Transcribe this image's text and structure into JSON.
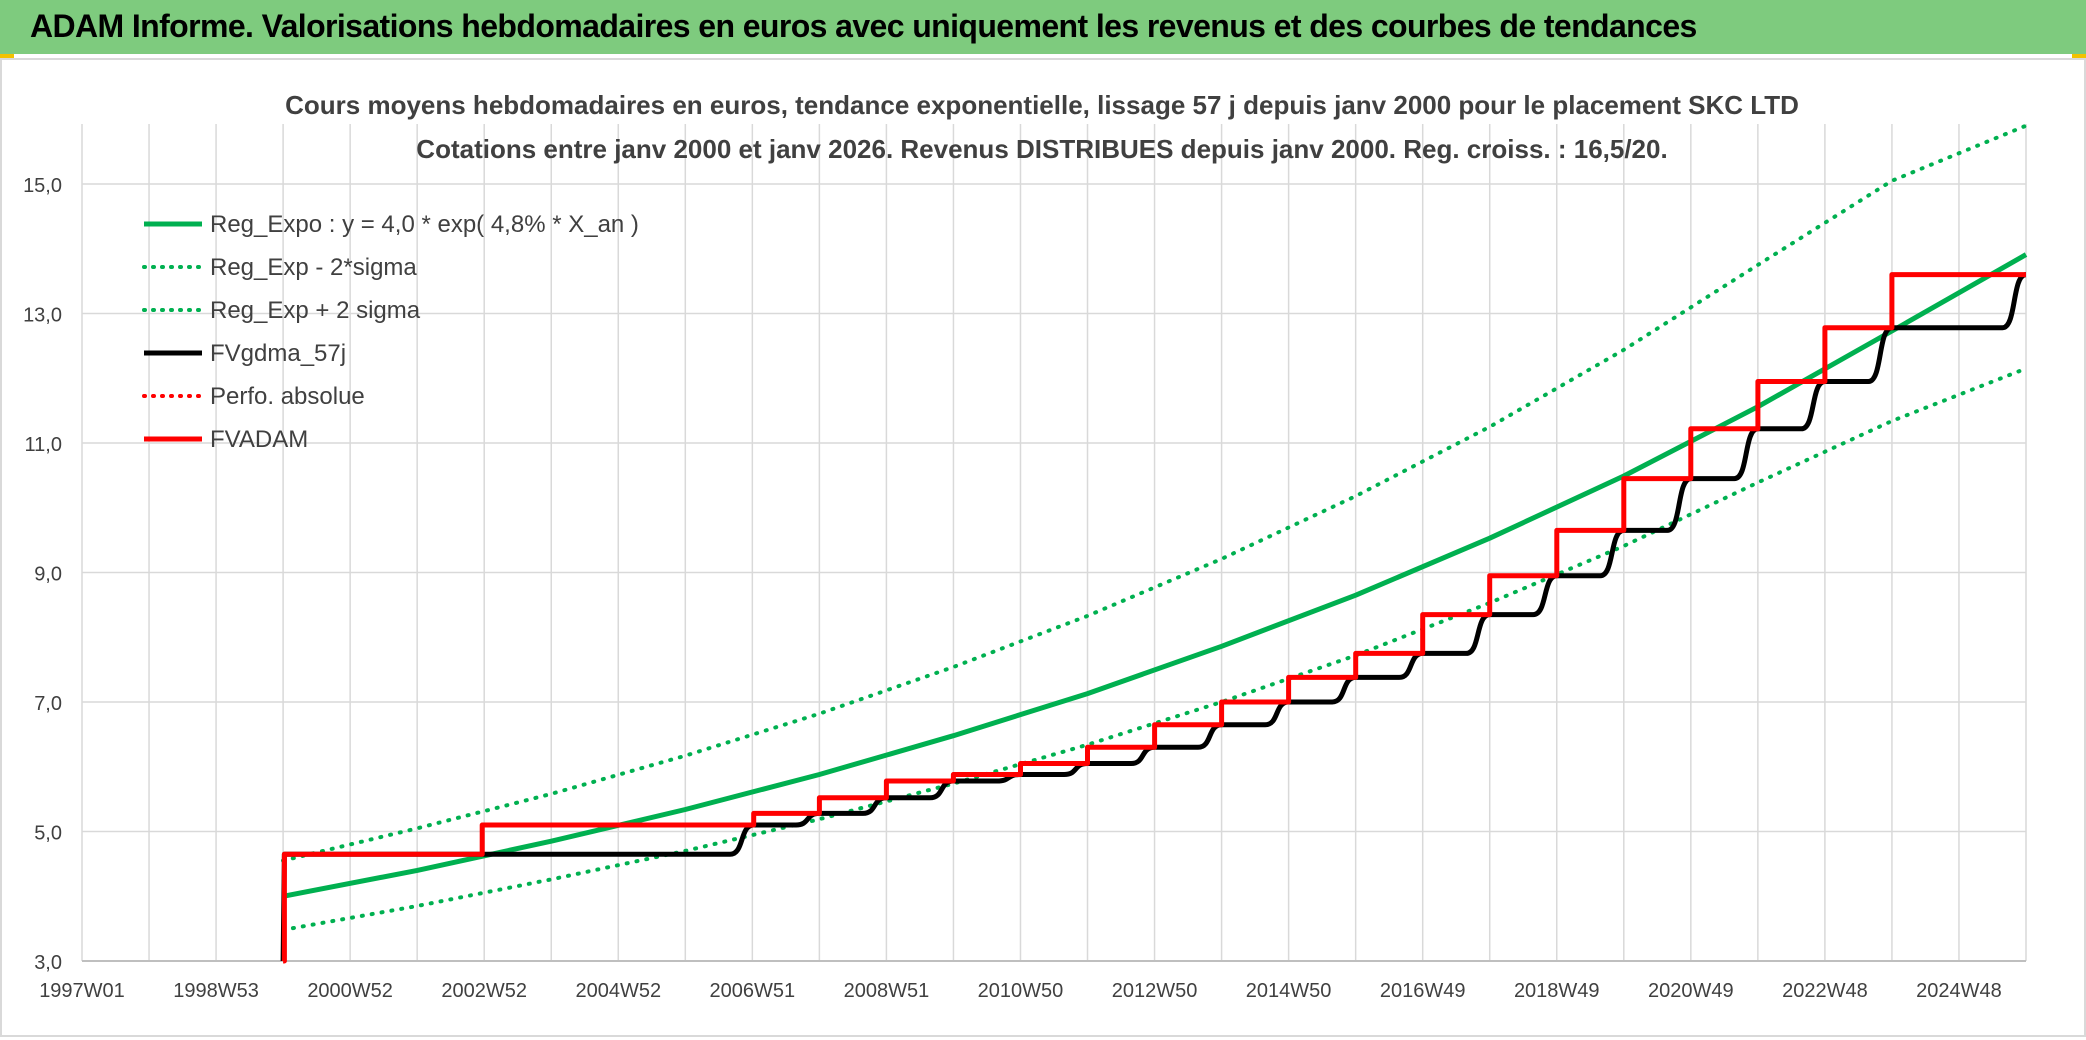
{
  "header": {
    "title": "ADAM Informe. Valorisations hebdomadaires en euros avec uniquement les revenus et des courbes de tendances"
  },
  "colors": {
    "header_bg": "#7ecb7e",
    "accent_corner": "#f2c200",
    "trend": "#00b050",
    "fv_gdma": "#000000",
    "fv_adam": "#ff0000",
    "perfo": "#ff0000",
    "grid": "#d9d9d9",
    "text": "#404040"
  },
  "chart_data": {
    "type": "line",
    "title": "Cours moyens hebdomadaires en euros, tendance exponentielle, lissage 57 j depuis janv 2000 pour le placement SKC LTD",
    "subtitle": "Cotations entre janv 2000 et janv 2026. Revenus DISTRIBUES depuis janv 2000. Reg. croiss. : 16,5/20.",
    "xlabel": "",
    "ylabel": "",
    "ylim": [
      3.0,
      15.0
    ],
    "xlim": [
      1997.0,
      2026.0
    ],
    "yticks": [
      3.0,
      5.0,
      7.0,
      9.0,
      11.0,
      13.0,
      15.0
    ],
    "ytick_labels": [
      "3,0",
      "5,0",
      "7,0",
      "9,0",
      "11,0",
      "13,0",
      "15,0"
    ],
    "xticks": [
      {
        "x": 1997.0,
        "label": "1997W01"
      },
      {
        "x": 1999.0,
        "label": "1998W53"
      },
      {
        "x": 2001.0,
        "label": "2000W52"
      },
      {
        "x": 2003.0,
        "label": "2002W52"
      },
      {
        "x": 2005.0,
        "label": "2004W52"
      },
      {
        "x": 2007.0,
        "label": "2006W51"
      },
      {
        "x": 2009.0,
        "label": "2008W51"
      },
      {
        "x": 2011.0,
        "label": "2010W50"
      },
      {
        "x": 2013.0,
        "label": "2012W50"
      },
      {
        "x": 2015.0,
        "label": "2014W50"
      },
      {
        "x": 2017.0,
        "label": "2016W49"
      },
      {
        "x": 2019.0,
        "label": "2018W49"
      },
      {
        "x": 2021.0,
        "label": "2020W49"
      },
      {
        "x": 2023.0,
        "label": "2022W48"
      },
      {
        "x": 2025.0,
        "label": "2024W48"
      }
    ],
    "grid": true,
    "legend_position": "top-left",
    "series": [
      {
        "name": "Reg_Expo : y = 4,0 * exp( 4,8% *  X_an )",
        "color": "#00b050",
        "style": "solid",
        "width": 5,
        "x": [
          2000.0,
          2002.0,
          2004.0,
          2006.0,
          2008.0,
          2010.0,
          2012.0,
          2014.0,
          2016.0,
          2018.0,
          2020.0,
          2022.0,
          2024.0,
          2026.0
        ],
        "y": [
          4.0,
          4.4,
          4.85,
          5.34,
          5.88,
          6.48,
          7.13,
          7.86,
          8.65,
          9.53,
          10.49,
          11.56,
          12.73,
          13.91
        ]
      },
      {
        "name": "Reg_Exp - 2*sigma",
        "color": "#00b050",
        "style": "dotted",
        "width": 4,
        "x": [
          2000.0,
          2002.0,
          2004.0,
          2006.0,
          2008.0,
          2010.0,
          2012.0,
          2014.0,
          2016.0,
          2018.0,
          2020.0,
          2022.0,
          2024.0,
          2026.0
        ],
        "y": [
          3.48,
          3.85,
          4.26,
          4.7,
          5.19,
          5.74,
          6.34,
          7.0,
          7.72,
          8.53,
          9.41,
          10.39,
          11.34,
          12.15
        ]
      },
      {
        "name": "Reg_Exp + 2 sigma",
        "color": "#00b050",
        "style": "dotted",
        "width": 4,
        "x": [
          2000.0,
          2002.0,
          2004.0,
          2006.0,
          2008.0,
          2010.0,
          2012.0,
          2014.0,
          2016.0,
          2018.0,
          2020.0,
          2022.0,
          2024.0,
          2026.0
        ],
        "y": [
          4.55,
          5.05,
          5.58,
          6.17,
          6.82,
          7.54,
          8.33,
          9.21,
          10.18,
          11.25,
          12.44,
          13.75,
          15.05,
          15.9
        ]
      },
      {
        "name": "FVgdma_57j",
        "color": "#000000",
        "style": "solid",
        "width": 5,
        "smooth_steps": true,
        "x": [
          2000.0,
          2000.02,
          2002.97,
          2007.02,
          2008.0,
          2009.0,
          2010.0,
          2011.0,
          2012.0,
          2013.0,
          2014.0,
          2015.0,
          2016.0,
          2017.0,
          2018.0,
          2019.0,
          2020.0,
          2021.0,
          2022.0,
          2023.0,
          2024.0,
          2026.0
        ],
        "y": [
          3.0,
          4.65,
          4.65,
          5.1,
          5.28,
          5.52,
          5.78,
          5.88,
          6.05,
          6.3,
          6.65,
          7.0,
          7.38,
          7.75,
          8.35,
          8.95,
          9.65,
          10.45,
          11.22,
          11.95,
          12.78,
          13.6
        ]
      },
      {
        "name": "Perfo. absolue",
        "color": "#ff0000",
        "style": "dotted",
        "width": 4,
        "x": [],
        "y": []
      },
      {
        "name": "FVADAM",
        "color": "#ff0000",
        "style": "step",
        "width": 5,
        "x": [
          2000.0,
          2000.02,
          2002.97,
          2007.02,
          2008.0,
          2009.0,
          2010.0,
          2011.0,
          2012.0,
          2013.0,
          2014.0,
          2015.0,
          2016.0,
          2017.0,
          2018.0,
          2019.0,
          2020.0,
          2021.0,
          2022.0,
          2023.0,
          2024.0,
          2026.0
        ],
        "y": [
          3.0,
          4.65,
          5.1,
          5.28,
          5.52,
          5.78,
          5.88,
          6.05,
          6.3,
          6.65,
          7.0,
          7.38,
          7.75,
          8.35,
          8.95,
          9.65,
          10.45,
          11.22,
          11.95,
          12.78,
          13.6,
          13.6
        ]
      }
    ]
  }
}
